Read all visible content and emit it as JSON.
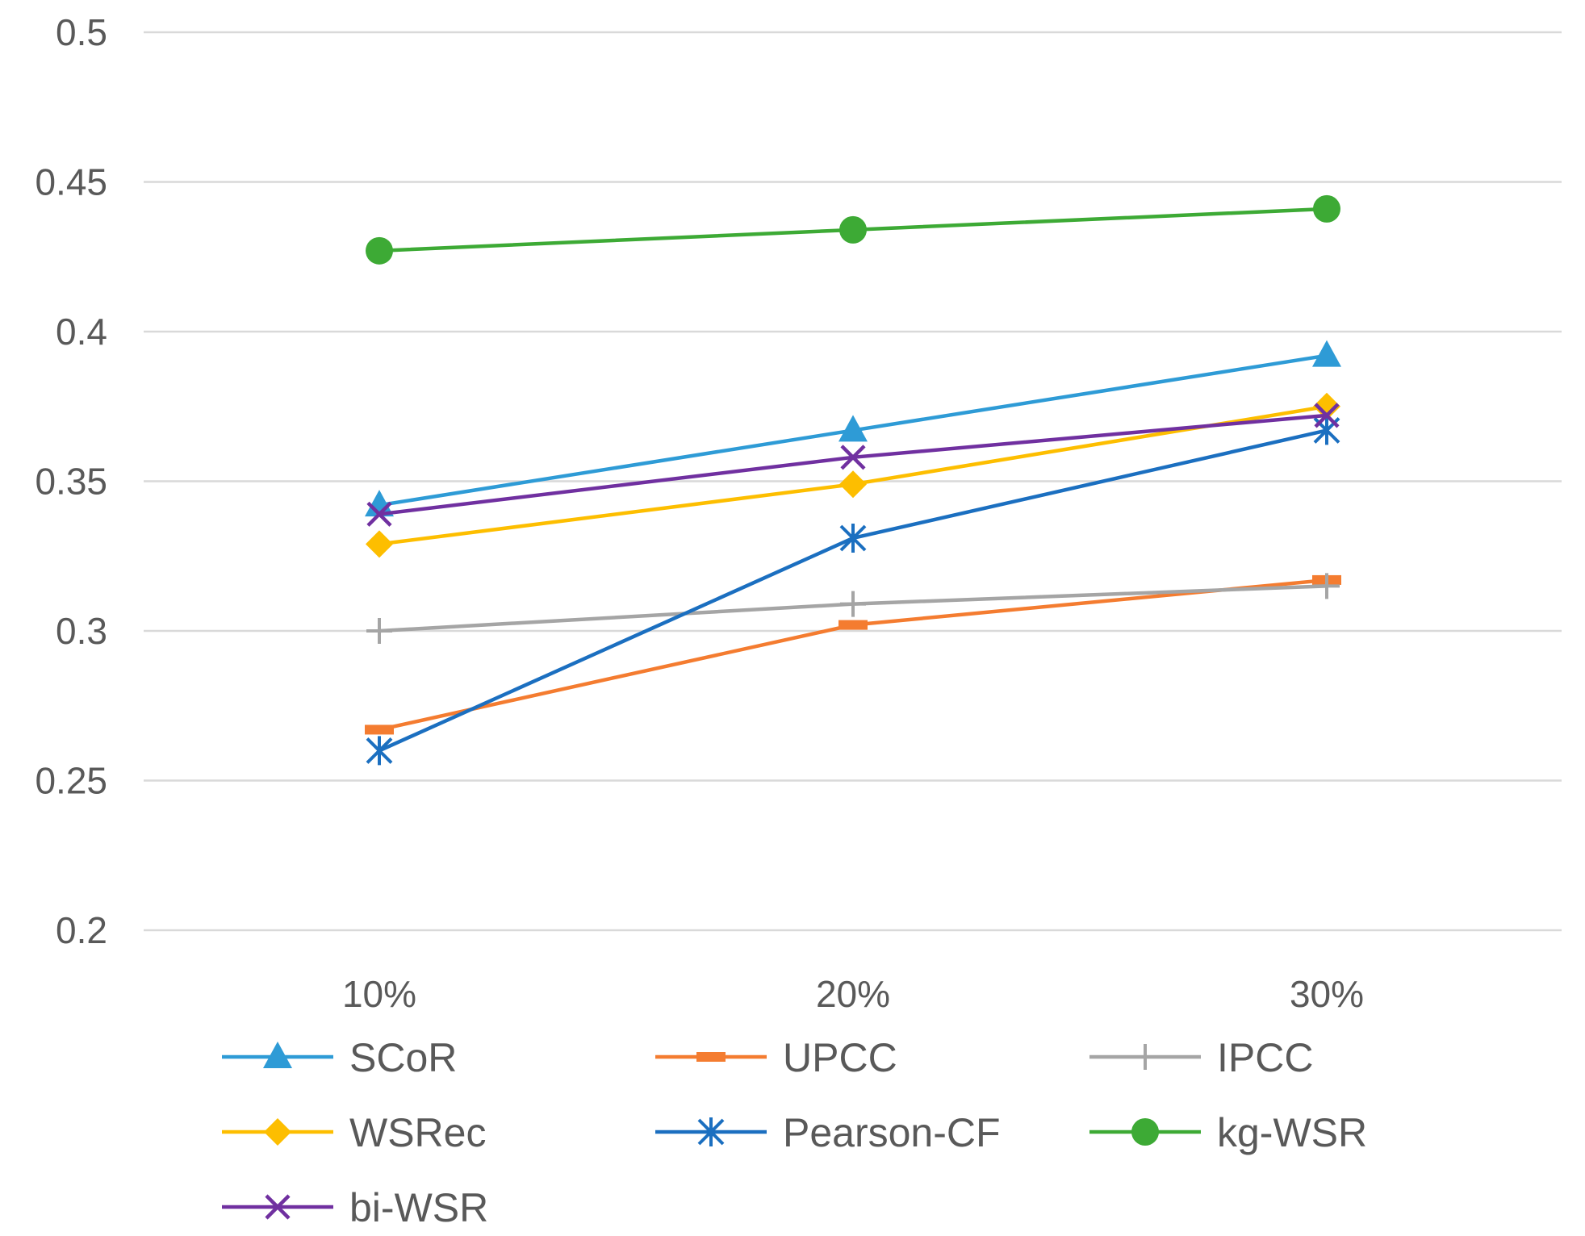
{
  "chart_data": {
    "type": "line",
    "categories": [
      "10%",
      "20%",
      "30%"
    ],
    "ylim": [
      0.2,
      0.5
    ],
    "yticks": [
      0.2,
      0.25,
      0.3,
      0.35,
      0.4,
      0.45,
      0.5
    ],
    "ytick_labels": [
      "0.2",
      "0.25",
      "0.3",
      "0.35",
      "0.4",
      "0.45",
      "0.5"
    ],
    "grid": true,
    "legend_position": "bottom",
    "series": [
      {
        "name": "SCoR",
        "values": [
          0.342,
          0.367,
          0.392
        ],
        "color": "#2E9BD6",
        "marker": "triangle"
      },
      {
        "name": "UPCC",
        "values": [
          0.267,
          0.302,
          0.317
        ],
        "color": "#F47C30",
        "marker": "dash"
      },
      {
        "name": "IPCC",
        "values": [
          0.3,
          0.309,
          0.315
        ],
        "color": "#A5A5A5",
        "marker": "plus"
      },
      {
        "name": "WSRec",
        "values": [
          0.329,
          0.349,
          0.375
        ],
        "color": "#FDBE00",
        "marker": "diamond"
      },
      {
        "name": "Pearson-CF",
        "values": [
          0.26,
          0.331,
          0.367
        ],
        "color": "#1B6FC0",
        "marker": "asterisk"
      },
      {
        "name": "kg-WSR",
        "values": [
          0.427,
          0.434,
          0.441
        ],
        "color": "#3DAA35",
        "marker": "circle"
      },
      {
        "name": "bi-WSR",
        "values": [
          0.339,
          0.358,
          0.372
        ],
        "color": "#7030A0",
        "marker": "x"
      }
    ]
  }
}
